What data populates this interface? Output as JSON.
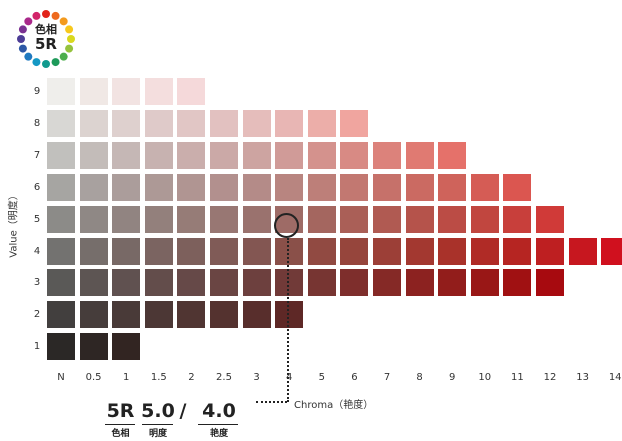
{
  "hue_badge": {
    "kanji": "色相",
    "code": "5R"
  },
  "axes": {
    "value_label": "Value（明度）",
    "chroma_label": "Chroma（艳度）",
    "value_ticks": [
      "9",
      "8",
      "7",
      "6",
      "5",
      "4",
      "3",
      "2",
      "1"
    ],
    "chroma_ticks": [
      "N",
      "0.5",
      "1",
      "1.5",
      "2",
      "2.5",
      "3",
      "4",
      "5",
      "6",
      "7",
      "8",
      "9",
      "10",
      "11",
      "12",
      "13",
      "14"
    ]
  },
  "notation": {
    "hue": "5R",
    "value": "5.0",
    "slash": "/",
    "chroma": "4.0",
    "hue_caption": "色相",
    "value_caption": "明度",
    "chroma_caption": "艳度"
  },
  "highlight": {
    "value": "5",
    "chroma": "4"
  },
  "chart_data": {
    "type": "heatmap",
    "ylabel": "Value（明度）",
    "xlabel": "Chroma（艳度）",
    "row_values": [
      "9",
      "8",
      "7",
      "6",
      "5",
      "4",
      "3",
      "2",
      "1"
    ],
    "column_values": [
      "N",
      "0.5",
      "1",
      "1.5",
      "2",
      "2.5",
      "3",
      "4",
      "5",
      "6",
      "7",
      "8",
      "9",
      "10",
      "11",
      "12",
      "13",
      "14"
    ],
    "rows": [
      {
        "value": "9",
        "colors": [
          "#efeeeb",
          "#f0e8e5",
          "#f2e3e2",
          "#f4dede",
          "#f5d9da"
        ]
      },
      {
        "value": "8",
        "colors": [
          "#d8d7d4",
          "#dcd3d0",
          "#ded0ce",
          "#dfcac9",
          "#e1c6c5",
          "#e2c1c0",
          "#e5bdbb",
          "#e8b6b4",
          "#ecaea9",
          "#f0a59f"
        ]
      },
      {
        "value": "7",
        "colors": [
          "#c1c0bd",
          "#c3bcb9",
          "#c5b7b5",
          "#c7b2b0",
          "#caaeac",
          "#cba9a7",
          "#cda4a1",
          "#d09b98",
          "#d4928d",
          "#d88a84",
          "#dc827b",
          "#e07a72",
          "#e5716a"
        ]
      },
      {
        "value": "6",
        "colors": [
          "#a6a5a2",
          "#a8a19f",
          "#ab9d9b",
          "#ad9996",
          "#b09592",
          "#b2908e",
          "#b48b88",
          "#b88580",
          "#bd7f79",
          "#c27871",
          "#c6716a",
          "#cb6a62",
          "#cf635b",
          "#d55c55",
          "#db5650"
        ]
      },
      {
        "value": "5",
        "colors": [
          "#8c8b88",
          "#8f8885",
          "#918481",
          "#93807c",
          "#967c77",
          "#987773",
          "#9a726e",
          "#9e6b66",
          "#a4665f",
          "#aa5f57",
          "#b05a52",
          "#b5534b",
          "#bb4c45",
          "#c1463f",
          "#c83f3b",
          "#d03a38"
        ]
      },
      {
        "value": "4",
        "colors": [
          "#737270",
          "#766e6b",
          "#786966",
          "#7b6461",
          "#7d605c",
          "#805b57",
          "#835652",
          "#8a5049",
          "#914a42",
          "#96453c",
          "#9c3f37",
          "#a33830",
          "#a9322a",
          "#b02b26",
          "#b62522",
          "#be1f21",
          "#c7171f",
          "#d0101e"
        ]
      },
      {
        "value": "3",
        "colors": [
          "#5a5957",
          "#5d5553",
          "#605150",
          "#634d4b",
          "#664948",
          "#6a4543",
          "#6d403e",
          "#713a38",
          "#773532",
          "#7e2e2c",
          "#852926",
          "#8c2220",
          "#921d1b",
          "#991716",
          "#a01112",
          "#a70a0f"
        ]
      },
      {
        "value": "2",
        "colors": [
          "#423f3e",
          "#463d3b",
          "#493a38",
          "#4c3735",
          "#503532",
          "#54322f",
          "#582e2c",
          "#5e2826"
        ]
      },
      {
        "value": "1",
        "colors": [
          "#2b2826",
          "#2e2624",
          "#322522"
        ]
      }
    ]
  }
}
